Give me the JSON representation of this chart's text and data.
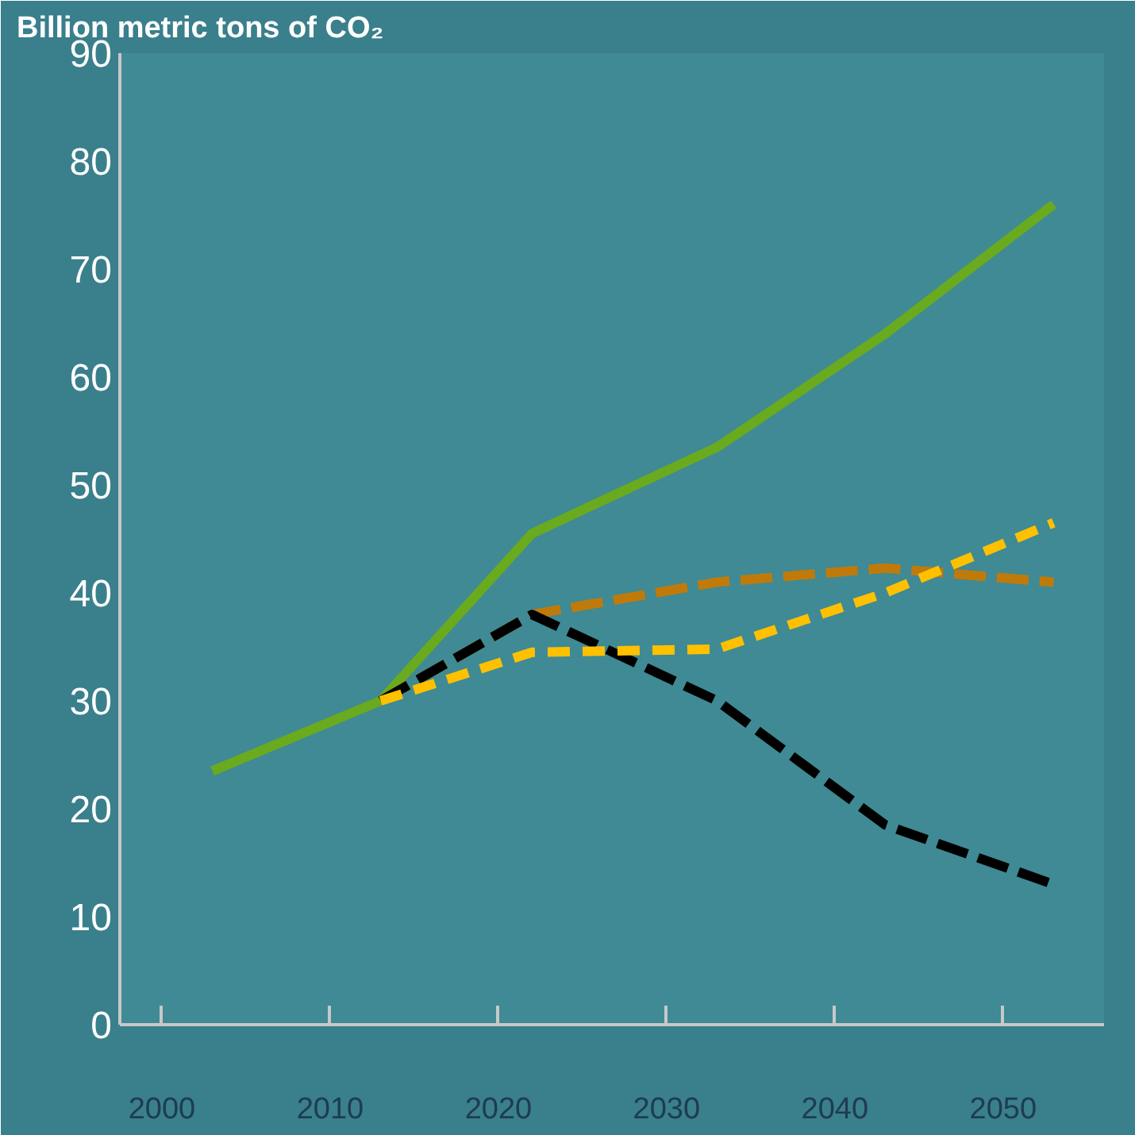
{
  "chart_data": {
    "type": "line",
    "ylabel": "Billion metric tons of CO₂",
    "x": [
      2003,
      2013,
      2022,
      2033,
      2043,
      2053
    ],
    "series": [
      {
        "color": "#6aaa1e",
        "line_style": "solid",
        "values": [
          23.5,
          30,
          45.5,
          53.5,
          64,
          76
        ]
      },
      {
        "color": "#c07a0a",
        "line_style": "dashed",
        "values": [
          null,
          30,
          38,
          41,
          42.3,
          41
        ]
      },
      {
        "color": "#000000",
        "line_style": "dashed",
        "values": [
          null,
          30,
          38,
          30,
          18.5,
          13
        ]
      },
      {
        "color": "#ffc000",
        "line_style": "dotted",
        "values": [
          null,
          30,
          34.5,
          34.8,
          40,
          46.5
        ]
      }
    ],
    "xlim": [
      1997.5,
      2056
    ],
    "xticks": [
      2000,
      2010,
      2020,
      2030,
      2040,
      2050
    ],
    "ylim": [
      0,
      90
    ],
    "yticks": [
      0,
      10,
      20,
      30,
      40,
      50,
      60,
      70,
      80,
      90
    ],
    "grid": false,
    "marker": "none"
  }
}
